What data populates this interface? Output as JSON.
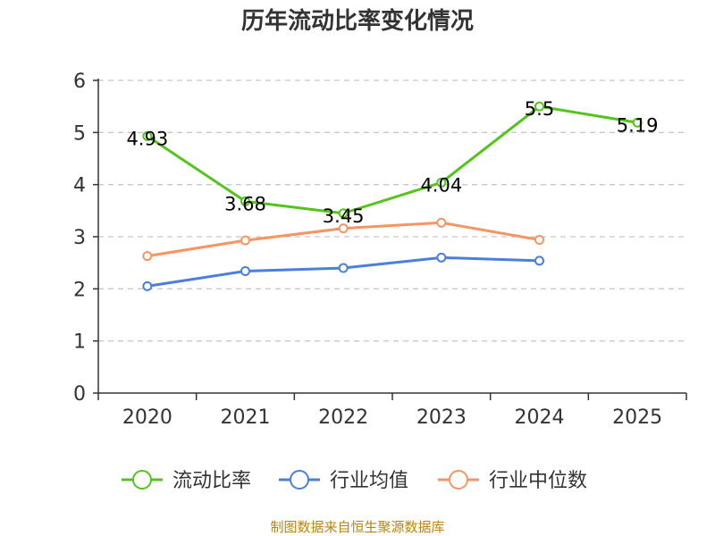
{
  "chart_data": {
    "type": "line",
    "title": "历年流动比率变化情况",
    "xlabel": "",
    "ylabel": "",
    "categories": [
      "2020",
      "2021",
      "2022",
      "2023",
      "2024",
      "2025"
    ],
    "ylim": [
      0,
      6
    ],
    "yticks": [
      "0",
      "1",
      "2",
      "3",
      "4",
      "5",
      "6"
    ],
    "grid": true,
    "legend_position": "bottom",
    "series": [
      {
        "name": "流动比率",
        "color": "#52c41a",
        "values": [
          4.93,
          3.68,
          3.45,
          4.04,
          5.5,
          5.19
        ],
        "labels": [
          "4.93",
          "3.68",
          "3.45",
          "4.04",
          "5.5",
          "5.19"
        ]
      },
      {
        "name": "行业均值",
        "color": "#4a7fdc",
        "values": [
          2.05,
          2.34,
          2.4,
          2.6,
          2.54,
          null
        ]
      },
      {
        "name": "行业中位数",
        "color": "#f59564",
        "values": [
          2.63,
          2.93,
          3.16,
          3.27,
          2.94,
          null
        ]
      }
    ],
    "source_note": "制图数据来自恒生聚源数据库"
  }
}
